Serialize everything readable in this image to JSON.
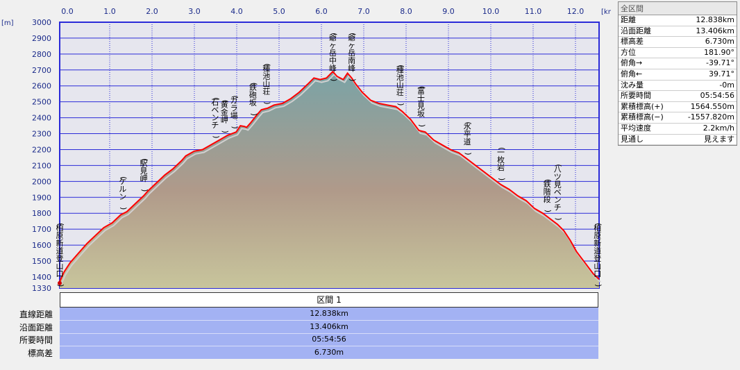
{
  "chart_data": {
    "type": "area",
    "xlabel_unit": "[km]",
    "ylabel_unit": "[m]",
    "xlim": [
      0,
      12.838
    ],
    "ylim": [
      1330,
      3000
    ],
    "x_ticks": [
      "0.0",
      "1.0",
      "2.0",
      "3.0",
      "4.0",
      "5.0",
      "6.0",
      "7.0",
      "8.0",
      "9.0",
      "10.0",
      "11.0",
      "12.0"
    ],
    "y_ticks": [
      "3000",
      "2900",
      "2800",
      "2700",
      "2600",
      "2500",
      "2400",
      "2300",
      "2200",
      "2100",
      "2000",
      "1900",
      "1800",
      "1700",
      "1600",
      "1500",
      "1400",
      "1330"
    ],
    "profile": {
      "x": [
        0.0,
        0.1,
        0.25,
        0.45,
        0.65,
        0.85,
        1.05,
        1.25,
        1.45,
        1.6,
        1.8,
        2.0,
        2.1,
        2.3,
        2.5,
        2.7,
        2.9,
        3.0,
        3.2,
        3.4,
        3.6,
        3.8,
        4.0,
        4.2,
        4.3,
        4.4,
        4.45,
        4.55,
        4.7,
        4.8,
        4.95,
        5.1,
        5.3,
        5.5,
        5.7,
        5.9,
        6.05,
        6.2,
        6.35,
        6.5,
        6.6,
        6.75,
        6.85,
        6.95,
        7.05,
        7.2,
        7.4,
        7.6,
        7.8,
        8.0,
        8.15,
        8.35,
        8.55,
        8.7,
        8.9,
        9.1,
        9.3,
        9.5,
        9.7,
        9.9,
        10.1,
        10.3,
        10.5,
        10.7,
        10.9,
        11.1,
        11.3,
        11.5,
        11.7,
        11.85,
        12.0,
        12.15,
        12.3,
        12.5,
        12.7,
        12.838
      ],
      "y": [
        1370,
        1430,
        1490,
        1550,
        1610,
        1660,
        1710,
        1740,
        1790,
        1810,
        1860,
        1910,
        1940,
        1990,
        2040,
        2080,
        2130,
        2160,
        2190,
        2200,
        2230,
        2260,
        2290,
        2310,
        2350,
        2345,
        2340,
        2370,
        2420,
        2450,
        2460,
        2480,
        2490,
        2520,
        2560,
        2610,
        2650,
        2640,
        2650,
        2690,
        2660,
        2640,
        2680,
        2650,
        2610,
        2560,
        2510,
        2490,
        2480,
        2470,
        2440,
        2390,
        2320,
        2310,
        2260,
        2230,
        2200,
        2180,
        2140,
        2100,
        2060,
        2020,
        1980,
        1950,
        1910,
        1880,
        1830,
        1800,
        1760,
        1730,
        1690,
        1630,
        1560,
        1490,
        1420,
        1385
      ]
    },
    "annotations": [
      {
        "x": 0.0,
        "text": "(柏原新道登山口)"
      },
      {
        "x": 1.5,
        "text": "(ケルン)"
      },
      {
        "x": 2.0,
        "text": "(駅見岬)"
      },
      {
        "x": 3.7,
        "text": "(石ベンチ)"
      },
      {
        "x": 3.92,
        "text": "(黄金岬)"
      },
      {
        "x": 4.15,
        "text": "(ガラ場)"
      },
      {
        "x": 4.6,
        "text": "(鉄砲坂)"
      },
      {
        "x": 4.92,
        "text": "(種池山荘)"
      },
      {
        "x": 6.5,
        "text": "(爺ヶ岳中峰)"
      },
      {
        "x": 6.95,
        "text": "(爺ヶ岳南峰)"
      },
      {
        "x": 8.1,
        "text": "(種池山荘)"
      },
      {
        "x": 8.6,
        "text": "(富士見坂)"
      },
      {
        "x": 9.7,
        "text": "(水平道)"
      },
      {
        "x": 10.5,
        "text": "(一枚岩)"
      },
      {
        "x": 11.6,
        "text": "(鉄階段)"
      },
      {
        "x": 11.85,
        "text": "(八ツ見ベンチ)"
      },
      {
        "x": 12.8,
        "text": "(柏原新道登山口)"
      }
    ]
  },
  "summary_panel": {
    "title": "全区間",
    "rows": [
      {
        "label": "距離",
        "value": "12.838km"
      },
      {
        "label": "沿面距離",
        "value": "13.406km"
      },
      {
        "label": "標高差",
        "value": "6.730m"
      },
      {
        "label": "方位",
        "value": "181.90°"
      },
      {
        "label": "俯角→",
        "value": "-39.71°"
      },
      {
        "label": "俯角←",
        "value": "39.71°"
      },
      {
        "label": "沈み量",
        "value": "-0m"
      },
      {
        "label": "所要時間",
        "value": "05:54:56"
      },
      {
        "label": "累積標高(+)",
        "value": "1564.550m"
      },
      {
        "label": "累積標高(−)",
        "value": "-1557.820m"
      },
      {
        "label": "平均速度",
        "value": "2.2km/h"
      },
      {
        "label": "見通し",
        "value": "見えます"
      }
    ]
  },
  "section": {
    "header": "区間 1",
    "rows": [
      {
        "label": "直線距離",
        "value": "12.838km"
      },
      {
        "label": "沿面距離",
        "value": "13.406km"
      },
      {
        "label": "所要時間",
        "value": "05:54:56"
      },
      {
        "label": "標高差",
        "value": "6.730m"
      }
    ]
  },
  "colors": {
    "plot_bg": "#e6e6ee",
    "grid": "#2a2ad8",
    "profile_line": "#ff0000",
    "fill_top": "#7aa3a6",
    "fill_bottom": "#c6c39a",
    "section_bg": "#a3b2f3"
  }
}
